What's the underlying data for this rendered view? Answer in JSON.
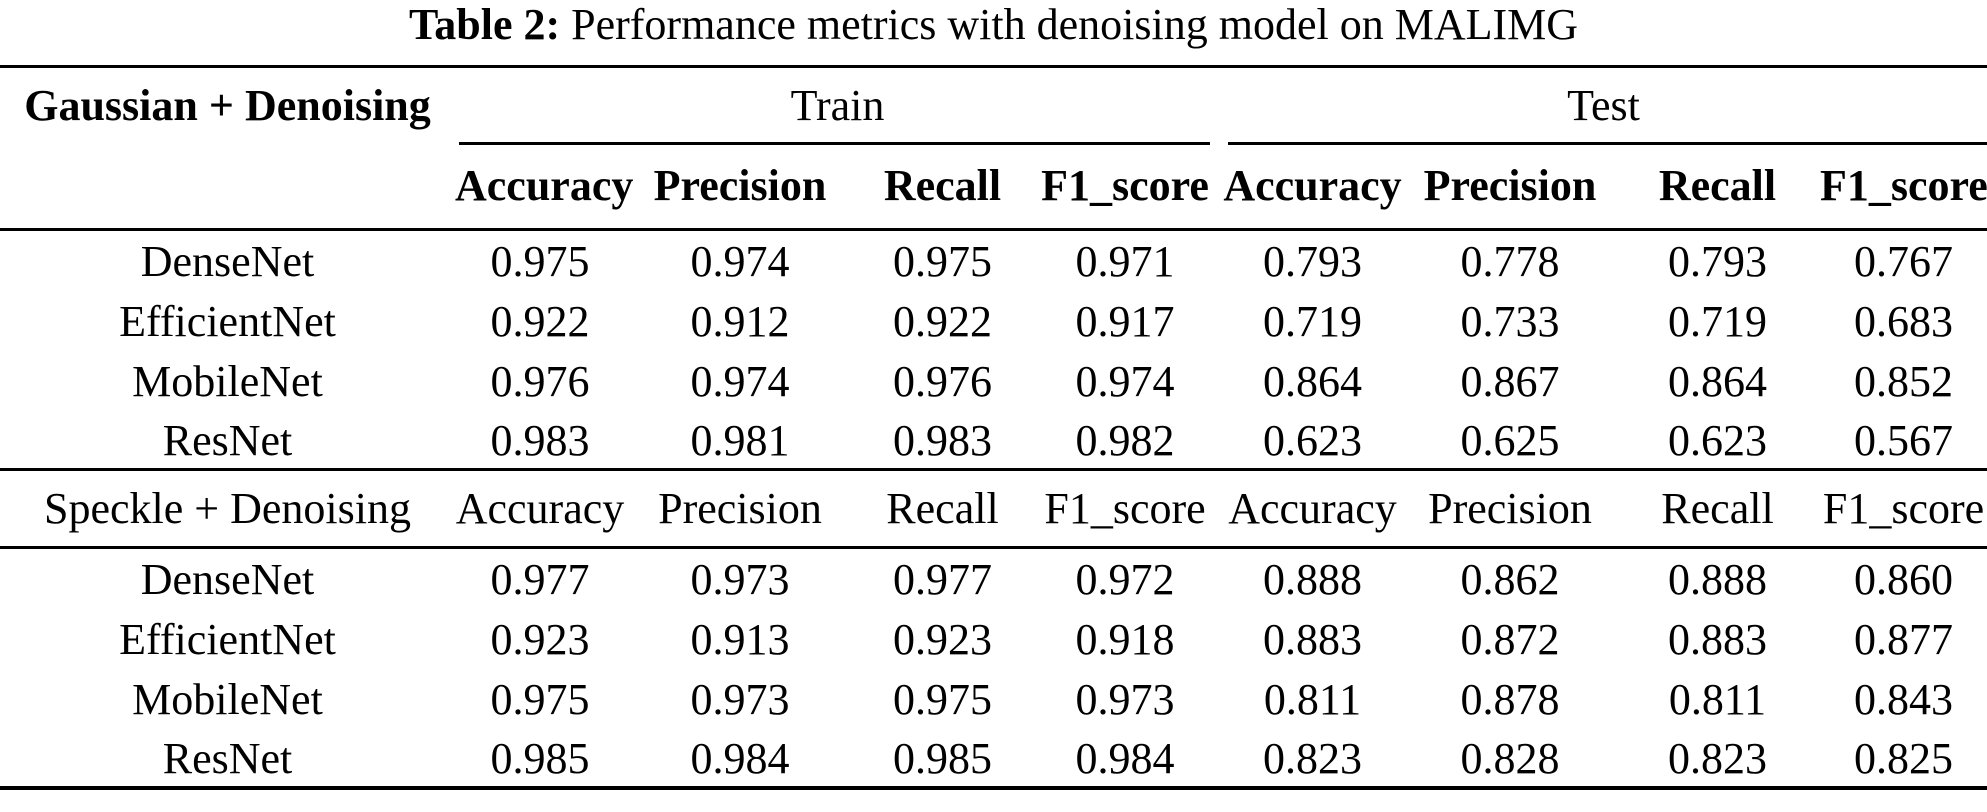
{
  "caption": {
    "label": "Table 2:",
    "text": " Performance metrics with denoising model on MALIMG"
  },
  "colors": {
    "text": "#000000",
    "background": "#ffffff",
    "rule": "#000000"
  },
  "table": {
    "span_headers": [
      "Train",
      "Test"
    ],
    "metric_headers": [
      "Accuracy",
      "Precision",
      "Recall",
      "F1_score"
    ],
    "sections": [
      {
        "label": "Gaussian + Denoising",
        "label_bold": true,
        "rows": [
          {
            "model": "DenseNet",
            "values": [
              "0.975",
              "0.974",
              "0.975",
              "0.971",
              "0.793",
              "0.778",
              "0.793",
              "0.767"
            ],
            "bold": [
              false,
              false,
              false,
              false,
              false,
              false,
              false,
              false
            ]
          },
          {
            "model": "EfficientNet",
            "values": [
              "0.922",
              "0.912",
              "0.922",
              "0.917",
              "0.719",
              "0.733",
              "0.719",
              "0.683"
            ],
            "bold": [
              false,
              false,
              false,
              false,
              false,
              false,
              false,
              false
            ]
          },
          {
            "model": "MobileNet",
            "values": [
              "0.976",
              "0.974",
              "0.976",
              "0.974",
              "0.864",
              "0.867",
              "0.864",
              "0.852"
            ],
            "bold": [
              false,
              false,
              false,
              false,
              true,
              true,
              true,
              true
            ]
          },
          {
            "model": "ResNet",
            "values": [
              "0.983",
              "0.981",
              "0.983",
              "0.982",
              "0.623",
              "0.625",
              "0.623",
              "0.567"
            ],
            "bold": [
              true,
              true,
              true,
              true,
              false,
              false,
              false,
              false
            ]
          }
        ]
      },
      {
        "label": "Speckle + Denoising",
        "label_bold": false,
        "rows": [
          {
            "model": "DenseNet",
            "values": [
              "0.977",
              "0.973",
              "0.977",
              "0.972",
              "0.888",
              "0.862",
              "0.888",
              "0.860"
            ],
            "bold": [
              false,
              false,
              false,
              false,
              true,
              false,
              true,
              false
            ]
          },
          {
            "model": "EfficientNet",
            "values": [
              "0.923",
              "0.913",
              "0.923",
              "0.918",
              "0.883",
              "0.872",
              "0.883",
              "0.877"
            ],
            "bold": [
              false,
              false,
              false,
              false,
              false,
              true,
              false,
              true
            ]
          },
          {
            "model": "MobileNet",
            "values": [
              "0.975",
              "0.973",
              "0.975",
              "0.973",
              "0.811",
              "0.878",
              "0.811",
              "0.843"
            ],
            "bold": [
              false,
              false,
              false,
              false,
              false,
              false,
              false,
              false
            ]
          },
          {
            "model": "ResNet",
            "values": [
              "0.985",
              "0.984",
              "0.985",
              "0.984",
              "0.823",
              "0.828",
              "0.823",
              "0.825"
            ],
            "bold": [
              true,
              true,
              true,
              true,
              false,
              false,
              false,
              false
            ]
          }
        ]
      }
    ]
  }
}
